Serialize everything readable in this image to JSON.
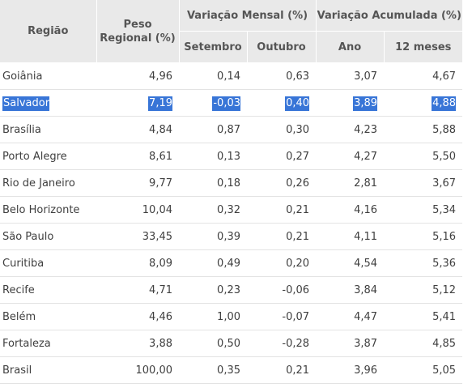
{
  "header": {
    "region": "Região",
    "weight_line1": "Peso",
    "weight_line2": "Regional (%)",
    "monthly_group": "Variação Mensal (%)",
    "accum_group": "Variação Acumulada (%)",
    "sep": "Setembro",
    "oct": "Outubro",
    "year": "Ano",
    "twelve": "12 meses"
  },
  "rows": [
    {
      "region": "Goiânia",
      "weight": "4,96",
      "sep": "0,14",
      "oct": "0,63",
      "year": "3,07",
      "twelve": "4,67"
    },
    {
      "region": "Salvador",
      "weight": "7,19",
      "sep": "-0,03",
      "oct": "0,40",
      "year": "3,89",
      "twelve": "4,88"
    },
    {
      "region": "Brasília",
      "weight": "4,84",
      "sep": "0,87",
      "oct": "0,30",
      "year": "4,23",
      "twelve": "5,88"
    },
    {
      "region": "Porto Alegre",
      "weight": "8,61",
      "sep": "0,13",
      "oct": "0,27",
      "year": "4,27",
      "twelve": "5,50"
    },
    {
      "region": "Rio de Janeiro",
      "weight": "9,77",
      "sep": "0,18",
      "oct": "0,26",
      "year": "2,81",
      "twelve": "3,67"
    },
    {
      "region": "Belo Horizonte",
      "weight": "10,04",
      "sep": "0,32",
      "oct": "0,21",
      "year": "4,16",
      "twelve": "5,34"
    },
    {
      "region": "São Paulo",
      "weight": "33,45",
      "sep": "0,39",
      "oct": "0,21",
      "year": "4,11",
      "twelve": "5,16"
    },
    {
      "region": "Curitiba",
      "weight": "8,09",
      "sep": "0,49",
      "oct": "0,20",
      "year": "4,54",
      "twelve": "5,36"
    },
    {
      "region": "Recife",
      "weight": "4,71",
      "sep": "0,23",
      "oct": "-0,06",
      "year": "3,84",
      "twelve": "5,12"
    },
    {
      "region": "Belém",
      "weight": "4,46",
      "sep": "1,00",
      "oct": "-0,07",
      "year": "4,47",
      "twelve": "5,41"
    },
    {
      "region": "Fortaleza",
      "weight": "3,88",
      "sep": "0,50",
      "oct": "-0,28",
      "year": "3,87",
      "twelve": "4,85"
    },
    {
      "region": "Brasil",
      "weight": "100,00",
      "sep": "0,35",
      "oct": "0,21",
      "year": "3,96",
      "twelve": "5,05"
    }
  ],
  "selection": {
    "highlight_color": "#3875d7",
    "selected_region": "Salvador"
  }
}
